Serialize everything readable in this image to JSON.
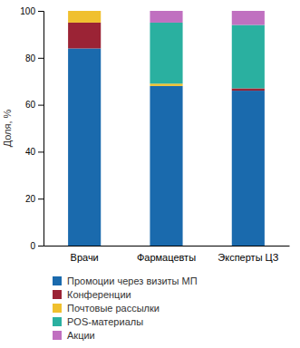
{
  "chart_data": {
    "type": "bar",
    "stacked": true,
    "categories": [
      "Врачи",
      "Фармацевты",
      "Эксперты ЦЗ"
    ],
    "series": [
      {
        "name": "Промоции через визиты МП",
        "color": "#1a6aad",
        "values": [
          84,
          68,
          66
        ]
      },
      {
        "name": "Конференции",
        "color": "#9b2335",
        "values": [
          11,
          0,
          1
        ]
      },
      {
        "name": "Почтовые рассылки",
        "color": "#f0c02e",
        "values": [
          5,
          1,
          0
        ]
      },
      {
        "name": "POS-материалы",
        "color": "#2ab0a0",
        "values": [
          0,
          26,
          27
        ]
      },
      {
        "name": "Акции",
        "color": "#c070c0",
        "values": [
          0,
          5,
          6
        ]
      }
    ],
    "ylabel": "Доля, %",
    "ylim": [
      0,
      100
    ],
    "yticks": [
      0,
      20,
      40,
      60,
      80,
      100
    ],
    "grid": false,
    "legend": "bottom"
  }
}
